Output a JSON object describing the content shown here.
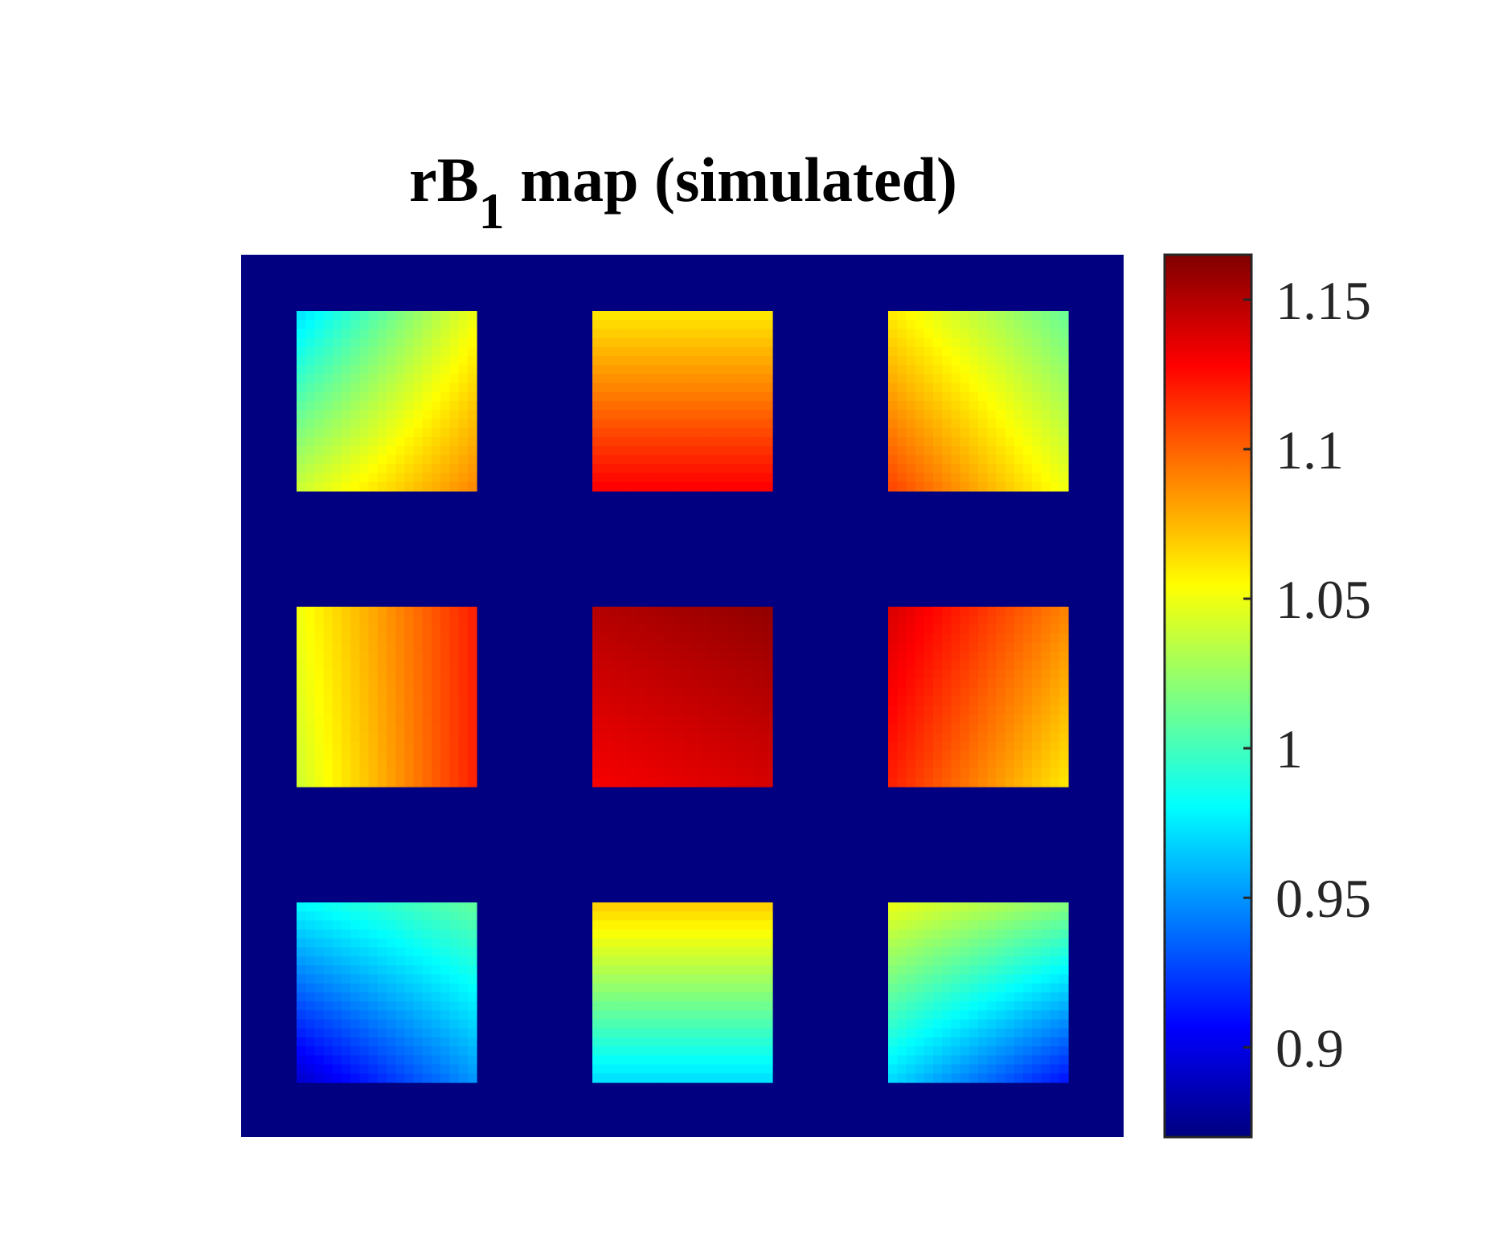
{
  "chart_data": {
    "type": "heatmap",
    "title": "rB",
    "title_subscript": "1",
    "title_suffix": " map (simulated)",
    "colormap": "jet",
    "background_value": 0.87,
    "clim": [
      0.87,
      1.165
    ],
    "colorbar": {
      "location": "right",
      "ticks": [
        0.9,
        0.95,
        1.0,
        1.05,
        1.1,
        1.15
      ],
      "tick_labels": [
        "0.9",
        "0.95",
        "1",
        "1.05",
        "1.1",
        "1.15"
      ]
    },
    "phantoms": [
      {
        "row": 1,
        "col": 1,
        "corners": {
          "tl": 0.97,
          "tr": 1.05,
          "bl": 1.04,
          "br": 1.09
        }
      },
      {
        "row": 1,
        "col": 2,
        "corners": {
          "tl": 1.06,
          "tr": 1.06,
          "bl": 1.13,
          "br": 1.13
        }
      },
      {
        "row": 1,
        "col": 3,
        "corners": {
          "tl": 1.06,
          "tr": 1.01,
          "bl": 1.11,
          "br": 1.05
        }
      },
      {
        "row": 2,
        "col": 1,
        "corners": {
          "tl": 1.05,
          "tr": 1.12,
          "bl": 1.04,
          "br": 1.12
        }
      },
      {
        "row": 2,
        "col": 2,
        "corners": {
          "tl": 1.15,
          "tr": 1.16,
          "bl": 1.13,
          "br": 1.14
        }
      },
      {
        "row": 2,
        "col": 3,
        "corners": {
          "tl": 1.14,
          "tr": 1.09,
          "bl": 1.12,
          "br": 1.06
        }
      },
      {
        "row": 3,
        "col": 1,
        "corners": {
          "tl": 0.98,
          "tr": 1.01,
          "bl": 0.89,
          "br": 0.95
        }
      },
      {
        "row": 3,
        "col": 2,
        "corners": {
          "tl": 1.07,
          "tr": 1.07,
          "bl": 0.97,
          "br": 0.97
        }
      },
      {
        "row": 3,
        "col": 3,
        "corners": {
          "tl": 1.05,
          "tr": 1.02,
          "bl": 0.97,
          "br": 0.91
        }
      }
    ]
  }
}
